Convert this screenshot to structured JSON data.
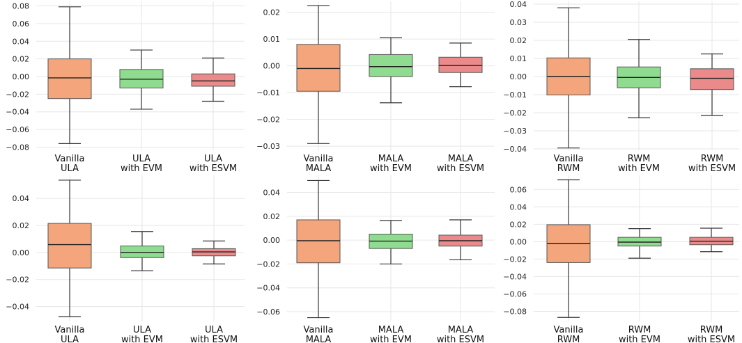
{
  "colors": {
    "box_1": "#f4a57b",
    "box_2": "#8fdb8f",
    "box_3": "#ea8a8a",
    "grid": "#e6e6e6",
    "line": "#333333"
  },
  "chart_data": [
    {
      "type": "box",
      "categories": [
        "Vanilla\nULA",
        "ULA\nwith EVM",
        "ULA\nwith ESVM"
      ],
      "ylim": [
        -0.082,
        0.082
      ],
      "yticks": [
        -0.08,
        -0.06,
        -0.04,
        -0.02,
        0.0,
        0.02,
        0.04,
        0.06,
        0.08
      ],
      "ytick_labels": [
        "−0.08",
        "−0.06",
        "−0.04",
        "−0.02",
        "0.00",
        "0.02",
        "0.04",
        "0.06",
        "0.08"
      ],
      "boxes": [
        {
          "whislo": -0.076,
          "q1": -0.025,
          "med": -0.0015,
          "q3": 0.02,
          "whishi": 0.079
        },
        {
          "whislo": -0.037,
          "q1": -0.013,
          "med": -0.003,
          "q3": 0.008,
          "whishi": 0.03
        },
        {
          "whislo": -0.028,
          "q1": -0.011,
          "med": -0.005,
          "q3": 0.003,
          "whishi": 0.021
        }
      ]
    },
    {
      "type": "box",
      "categories": [
        "Vanilla\nMALA",
        "MALA\nwith EVM",
        "MALA\nwith ESVM"
      ],
      "ylim": [
        -0.031,
        0.023
      ],
      "yticks": [
        -0.03,
        -0.02,
        -0.01,
        0.0,
        0.01,
        0.02
      ],
      "ytick_labels": [
        "−0.03",
        "−0.02",
        "−0.01",
        "0.00",
        "0.01",
        "0.02"
      ],
      "boxes": [
        {
          "whislo": -0.029,
          "q1": -0.0095,
          "med": -0.001,
          "q3": 0.008,
          "whishi": 0.0225
        },
        {
          "whislo": -0.0138,
          "q1": -0.004,
          "med": -0.0003,
          "q3": 0.0042,
          "whishi": 0.0105
        },
        {
          "whislo": -0.0078,
          "q1": -0.0025,
          "med": 0.0001,
          "q3": 0.0032,
          "whishi": 0.0085
        }
      ]
    },
    {
      "type": "box",
      "categories": [
        "Vanilla\nRWM",
        "RWM\nwith EVM",
        "RWM\nwith ESVM"
      ],
      "ylim": [
        -0.04,
        0.04
      ],
      "yticks": [
        -0.04,
        -0.03,
        -0.02,
        -0.01,
        0.0,
        0.01,
        0.02,
        0.03,
        0.04
      ],
      "ytick_labels": [
        "−0.04",
        "−0.03",
        "−0.02",
        "−0.01",
        "0.00",
        "0.01",
        "0.02",
        "0.03",
        "0.04"
      ],
      "boxes": [
        {
          "whislo": -0.0395,
          "q1": -0.0102,
          "med": 0.0001,
          "q3": 0.0103,
          "whishi": 0.038
        },
        {
          "whislo": -0.0228,
          "q1": -0.0062,
          "med": -0.0005,
          "q3": 0.0053,
          "whishi": 0.0205
        },
        {
          "whislo": -0.0215,
          "q1": -0.0072,
          "med": -0.001,
          "q3": 0.0043,
          "whishi": 0.0125
        }
      ]
    },
    {
      "type": "box",
      "categories": [
        "Vanilla\nULA",
        "ULA\nwith EVM",
        "ULA\nwith ESVM"
      ],
      "ylim": [
        -0.05,
        0.055
      ],
      "yticks": [
        -0.04,
        -0.02,
        0.0,
        0.02,
        0.04
      ],
      "ytick_labels": [
        "−0.04",
        "−0.02",
        "0.00",
        "0.02",
        "0.04"
      ],
      "boxes": [
        {
          "whislo": -0.0475,
          "q1": -0.0115,
          "med": 0.0058,
          "q3": 0.0215,
          "whishi": 0.0535
        },
        {
          "whislo": -0.0135,
          "q1": -0.0038,
          "med": 0.0001,
          "q3": 0.0048,
          "whishi": 0.0155
        },
        {
          "whislo": -0.0085,
          "q1": -0.0025,
          "med": 0.0004,
          "q3": 0.0028,
          "whishi": 0.0085
        }
      ]
    },
    {
      "type": "box",
      "categories": [
        "Vanilla\nMALA",
        "MALA\nwith EVM",
        "MALA\nwith ESVM"
      ],
      "ylim": [
        -0.067,
        0.052
      ],
      "yticks": [
        -0.06,
        -0.04,
        -0.02,
        0.0,
        0.02,
        0.04
      ],
      "ytick_labels": [
        "−0.06",
        "−0.04",
        "−0.02",
        "0.00",
        "0.02",
        "0.04"
      ],
      "boxes": [
        {
          "whislo": -0.065,
          "q1": -0.019,
          "med": -0.0005,
          "q3": 0.017,
          "whishi": 0.05
        },
        {
          "whislo": -0.02,
          "q1": -0.007,
          "med": -0.0008,
          "q3": 0.005,
          "whishi": 0.0165
        },
        {
          "whislo": -0.0165,
          "q1": -0.005,
          "med": -0.0005,
          "q3": 0.0042,
          "whishi": 0.017
        }
      ]
    },
    {
      "type": "box",
      "categories": [
        "Vanilla\nRWM",
        "RWM\nwith EVM",
        "RWM\nwith ESVM"
      ],
      "ylim": [
        -0.09,
        0.073
      ],
      "yticks": [
        -0.08,
        -0.06,
        -0.04,
        -0.02,
        0.0,
        0.02,
        0.04,
        0.06
      ],
      "ytick_labels": [
        "−0.08",
        "−0.06",
        "−0.04",
        "−0.02",
        "0.00",
        "0.02",
        "0.04",
        "0.06"
      ],
      "boxes": [
        {
          "whislo": -0.087,
          "q1": -0.024,
          "med": -0.002,
          "q3": 0.0195,
          "whishi": 0.071
        },
        {
          "whislo": -0.019,
          "q1": -0.005,
          "med": -0.0005,
          "q3": 0.005,
          "whishi": 0.015
        },
        {
          "whislo": -0.0115,
          "q1": -0.0035,
          "med": 0.0005,
          "q3": 0.005,
          "whishi": 0.0155
        }
      ]
    }
  ]
}
